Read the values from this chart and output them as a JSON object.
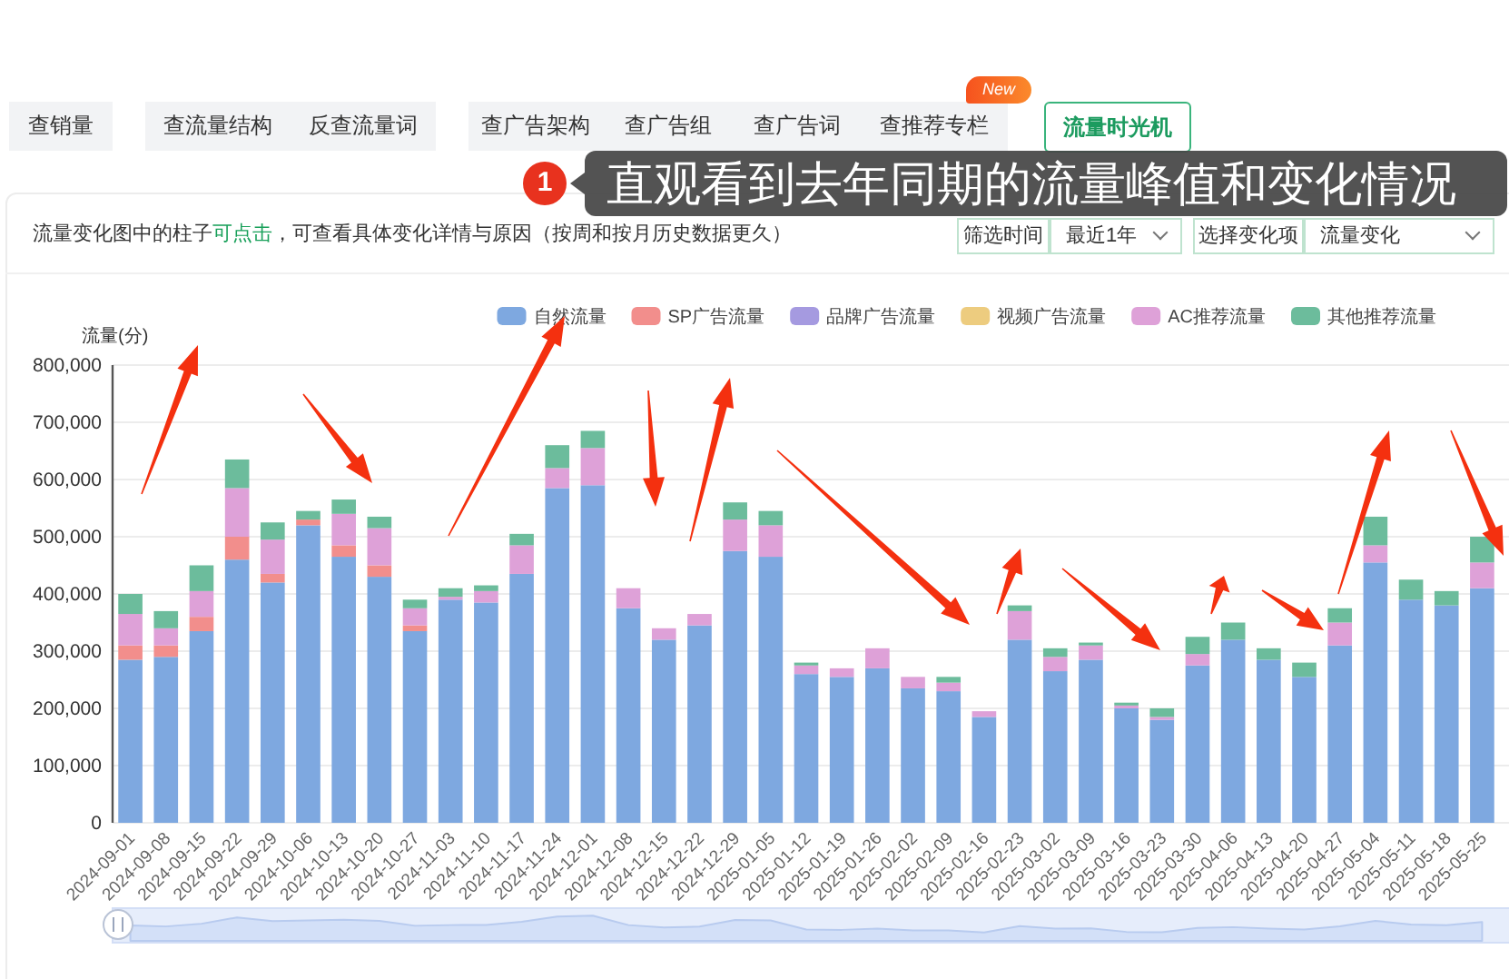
{
  "chart_data": {
    "type": "bar",
    "stacked": true,
    "categories": [
      "2024-09-01",
      "2024-09-08",
      "2024-09-15",
      "2024-09-22",
      "2024-09-29",
      "2024-10-06",
      "2024-10-13",
      "2024-10-20",
      "2024-10-27",
      "2024-11-03",
      "2024-11-10",
      "2024-11-17",
      "2024-11-24",
      "2024-12-01",
      "2024-12-08",
      "2024-12-15",
      "2024-12-22",
      "2024-12-29",
      "2025-01-05",
      "2025-01-12",
      "2025-01-19",
      "2025-01-26",
      "2025-02-02",
      "2025-02-09",
      "2025-02-16",
      "2025-02-23",
      "2025-03-02",
      "2025-03-09",
      "2025-03-16",
      "2025-03-23",
      "2025-03-30",
      "2025-04-06",
      "2025-04-13",
      "2025-04-20",
      "2025-04-27",
      "2025-05-04",
      "2025-05-11",
      "2025-05-18",
      "2025-05-25"
    ],
    "series": [
      {
        "name": "自然流量",
        "color": "#7ea8e0",
        "values": [
          285000,
          290000,
          335000,
          460000,
          420000,
          520000,
          465000,
          430000,
          335000,
          390000,
          385000,
          435000,
          585000,
          590000,
          375000,
          320000,
          345000,
          475000,
          465000,
          260000,
          255000,
          270000,
          235000,
          230000,
          185000,
          320000,
          265000,
          285000,
          200000,
          180000,
          275000,
          320000,
          285000,
          255000,
          310000,
          455000,
          390000,
          380000,
          410000
        ]
      },
      {
        "name": "SP广告流量",
        "color": "#f28e8c",
        "values": [
          25000,
          20000,
          25000,
          40000,
          15000,
          10000,
          20000,
          20000,
          10000,
          0,
          0,
          0,
          0,
          0,
          0,
          0,
          0,
          0,
          0,
          0,
          0,
          0,
          0,
          0,
          0,
          0,
          0,
          0,
          0,
          0,
          0,
          0,
          0,
          0,
          0,
          0,
          0,
          0,
          0
        ]
      },
      {
        "name": "品牌广告流量",
        "color": "#a59ae0",
        "values": [
          0,
          0,
          0,
          0,
          0,
          0,
          0,
          0,
          0,
          0,
          0,
          0,
          0,
          0,
          0,
          0,
          0,
          0,
          0,
          0,
          0,
          0,
          0,
          0,
          0,
          0,
          0,
          0,
          0,
          0,
          0,
          0,
          0,
          0,
          0,
          0,
          0,
          0,
          0
        ]
      },
      {
        "name": "视频广告流量",
        "color": "#edcc7f",
        "values": [
          0,
          0,
          0,
          0,
          0,
          0,
          0,
          0,
          0,
          0,
          0,
          0,
          0,
          0,
          0,
          0,
          0,
          0,
          0,
          0,
          0,
          0,
          0,
          0,
          0,
          0,
          0,
          0,
          0,
          0,
          0,
          0,
          0,
          0,
          0,
          0,
          0,
          0,
          0
        ]
      },
      {
        "name": "AC推荐流量",
        "color": "#dea1d8",
        "values": [
          55000,
          30000,
          45000,
          85000,
          60000,
          0,
          55000,
          65000,
          30000,
          5000,
          20000,
          50000,
          35000,
          65000,
          35000,
          20000,
          20000,
          55000,
          55000,
          15000,
          15000,
          35000,
          20000,
          15000,
          10000,
          50000,
          25000,
          25000,
          5000,
          5000,
          20000,
          0,
          0,
          0,
          40000,
          30000,
          0,
          0,
          45000
        ]
      },
      {
        "name": "其他推荐流量",
        "color": "#6cbc9c",
        "values": [
          35000,
          30000,
          45000,
          50000,
          30000,
          15000,
          25000,
          20000,
          15000,
          15000,
          10000,
          20000,
          40000,
          30000,
          0,
          0,
          0,
          30000,
          25000,
          5000,
          0,
          0,
          0,
          10000,
          0,
          10000,
          15000,
          5000,
          5000,
          15000,
          30000,
          30000,
          20000,
          25000,
          25000,
          50000,
          35000,
          25000,
          45000
        ]
      }
    ],
    "ylabel": "流量(分)",
    "ylim": [
      0,
      800000
    ],
    "yticks": [
      0,
      {
        "value": 100000,
        "label": "100,000"
      },
      {
        "value": 200000,
        "label": "200,000"
      },
      {
        "value": 300000,
        "label": "300,000"
      },
      {
        "value": 400000,
        "label": "400,000"
      },
      {
        "value": 500000,
        "label": "500,000"
      },
      {
        "value": 600000,
        "label": "600,000"
      },
      {
        "value": 700000,
        "label": "700,000"
      },
      {
        "value": 800000,
        "label": "800,000"
      }
    ],
    "grid": "y",
    "legend": "top right",
    "annotations": [
      "查销量",
      "查流量结构",
      "反查流量词",
      "查广告架构",
      "查广告组",
      "查广告词",
      "查推荐专栏",
      "New",
      "流量时光机",
      "流量变化图中的柱子",
      "可点击",
      "，可查看具体变化详情与原因（按周和按月历史数据更久）",
      "筛选时间",
      "最近1年",
      "选择变化项",
      "流量变化",
      "1",
      "直观看到去年同期的流量峰值和变化情况"
    ]
  }
}
